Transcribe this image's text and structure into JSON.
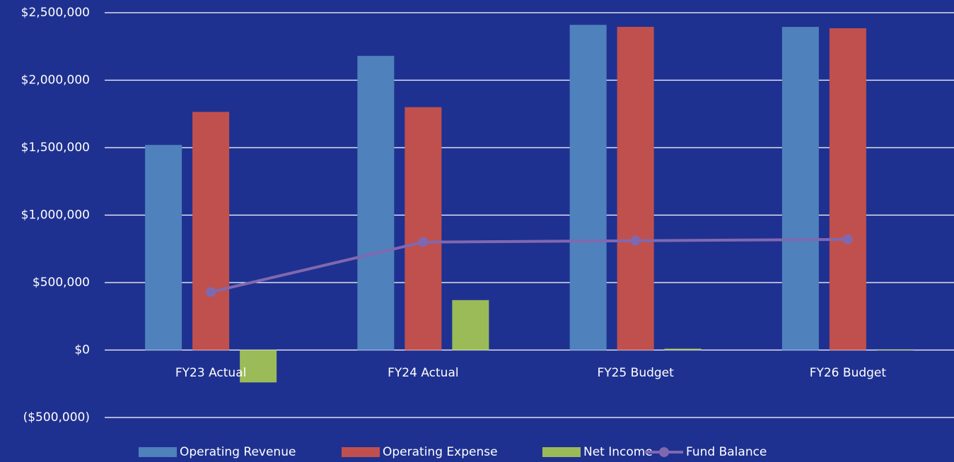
{
  "chart_data": {
    "type": "bar",
    "categories": [
      "FY23 Actual",
      "FY24 Actual",
      "FY25 Budget",
      "FY26 Budget"
    ],
    "series": [
      {
        "name": "Operating Revenue",
        "color": "#4f81bd",
        "values": [
          1520000,
          2180000,
          2410000,
          2395000
        ]
      },
      {
        "name": "Operating Expense",
        "color": "#c0504d",
        "values": [
          1765000,
          1800000,
          2395000,
          2385000
        ]
      },
      {
        "name": "Net Income",
        "color": "#9bbb59",
        "values": [
          -240000,
          370000,
          10000,
          5000
        ]
      },
      {
        "name": "Fund Balance",
        "color": "#8068b0",
        "type": "line",
        "values": [
          430000,
          800000,
          810000,
          820000
        ]
      }
    ],
    "ylim": [
      -500000,
      2500000
    ],
    "yticks": [
      {
        "value": -500000,
        "label": "($500,000)"
      },
      {
        "value": 0,
        "label": "$0"
      },
      {
        "value": 500000,
        "label": "$500,000"
      },
      {
        "value": 1000000,
        "label": "$1,000,000"
      },
      {
        "value": 1500000,
        "label": "$1,500,000"
      },
      {
        "value": 2000000,
        "label": "$2,000,000"
      },
      {
        "value": 2500000,
        "label": "$2,500,000"
      }
    ],
    "grid": true,
    "legend": "bottom"
  }
}
